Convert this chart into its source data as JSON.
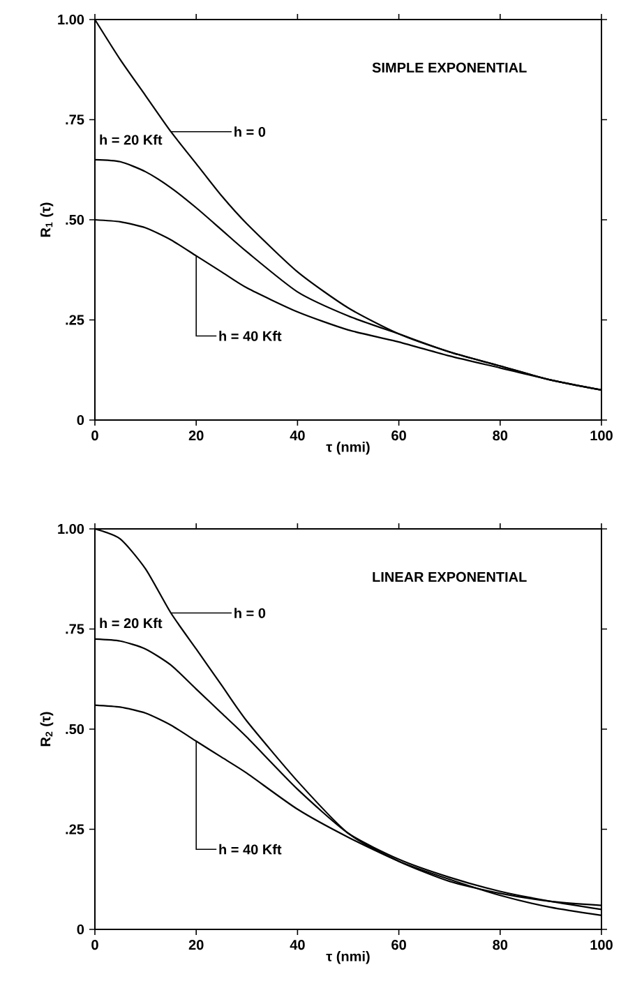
{
  "chart_data": [
    {
      "type": "line",
      "legend": "top left",
      "annotations": [
        "SIMPLE EXPONENTIAL"
      ],
      "xlabel": "τ (nmi)",
      "ylabel": "R$_{1}$ (τ)",
      "x": [
        0,
        5,
        10,
        15,
        20,
        25,
        30,
        40,
        50,
        60,
        70,
        80,
        90,
        100
      ],
      "xlim": [
        0,
        100
      ],
      "xticks": [
        0,
        20,
        40,
        60,
        80,
        100
      ],
      "ylim": [
        0,
        1.0
      ],
      "yticks": [
        {
          "value": 0,
          "label": "0"
        },
        {
          "value": 0.25,
          "label": ".25"
        },
        {
          "value": 0.5,
          "label": ".50"
        },
        {
          "value": 0.75,
          "label": ".75"
        },
        {
          "value": 1.0,
          "label": "1.00"
        }
      ],
      "series": [
        {
          "name": "h = 0",
          "color": "#000000",
          "values": [
            1.0,
            0.9,
            0.81,
            0.72,
            0.64,
            0.56,
            0.49,
            0.37,
            0.28,
            0.215,
            0.17,
            0.135,
            0.1,
            0.075
          ]
        },
        {
          "name": "h = 20 Kft",
          "color": "#000000",
          "values": [
            0.65,
            0.645,
            0.62,
            0.58,
            0.53,
            0.475,
            0.42,
            0.32,
            0.26,
            0.215,
            0.17,
            0.135,
            0.1,
            0.075
          ]
        },
        {
          "name": "h = 40 Kft",
          "color": "#000000",
          "values": [
            0.5,
            0.495,
            0.48,
            0.45,
            0.41,
            0.37,
            0.33,
            0.27,
            0.225,
            0.195,
            0.16,
            0.13,
            0.1,
            0.075
          ]
        }
      ]
    },
    {
      "type": "line",
      "legend": "top left",
      "annotations": [
        "LINEAR EXPONENTIAL"
      ],
      "xlabel": "τ (nmi)",
      "ylabel": "R$_{2}$ (τ)",
      "x": [
        0,
        5,
        10,
        15,
        20,
        25,
        30,
        40,
        50,
        60,
        70,
        80,
        90,
        100
      ],
      "xlim": [
        0,
        100
      ],
      "xticks": [
        0,
        20,
        40,
        60,
        80,
        100
      ],
      "ylim": [
        0,
        1.0
      ],
      "yticks": [
        {
          "value": 0,
          "label": "0"
        },
        {
          "value": 0.25,
          "label": ".25"
        },
        {
          "value": 0.5,
          "label": ".50"
        },
        {
          "value": 0.75,
          "label": ".75"
        },
        {
          "value": 1.0,
          "label": "1.00"
        }
      ],
      "series": [
        {
          "name": "h = 0",
          "color": "#000000",
          "values": [
            1.0,
            0.975,
            0.9,
            0.79,
            0.7,
            0.61,
            0.52,
            0.37,
            0.24,
            0.17,
            0.12,
            0.09,
            0.07,
            0.06
          ]
        },
        {
          "name": "h = 20 Kft",
          "color": "#000000",
          "values": [
            0.725,
            0.72,
            0.7,
            0.66,
            0.6,
            0.54,
            0.48,
            0.35,
            0.24,
            0.175,
            0.13,
            0.095,
            0.07,
            0.05
          ]
        },
        {
          "name": "h = 40 Kft",
          "color": "#000000",
          "values": [
            0.56,
            0.555,
            0.54,
            0.51,
            0.47,
            0.43,
            0.39,
            0.3,
            0.23,
            0.17,
            0.125,
            0.085,
            0.055,
            0.035
          ]
        }
      ]
    }
  ]
}
